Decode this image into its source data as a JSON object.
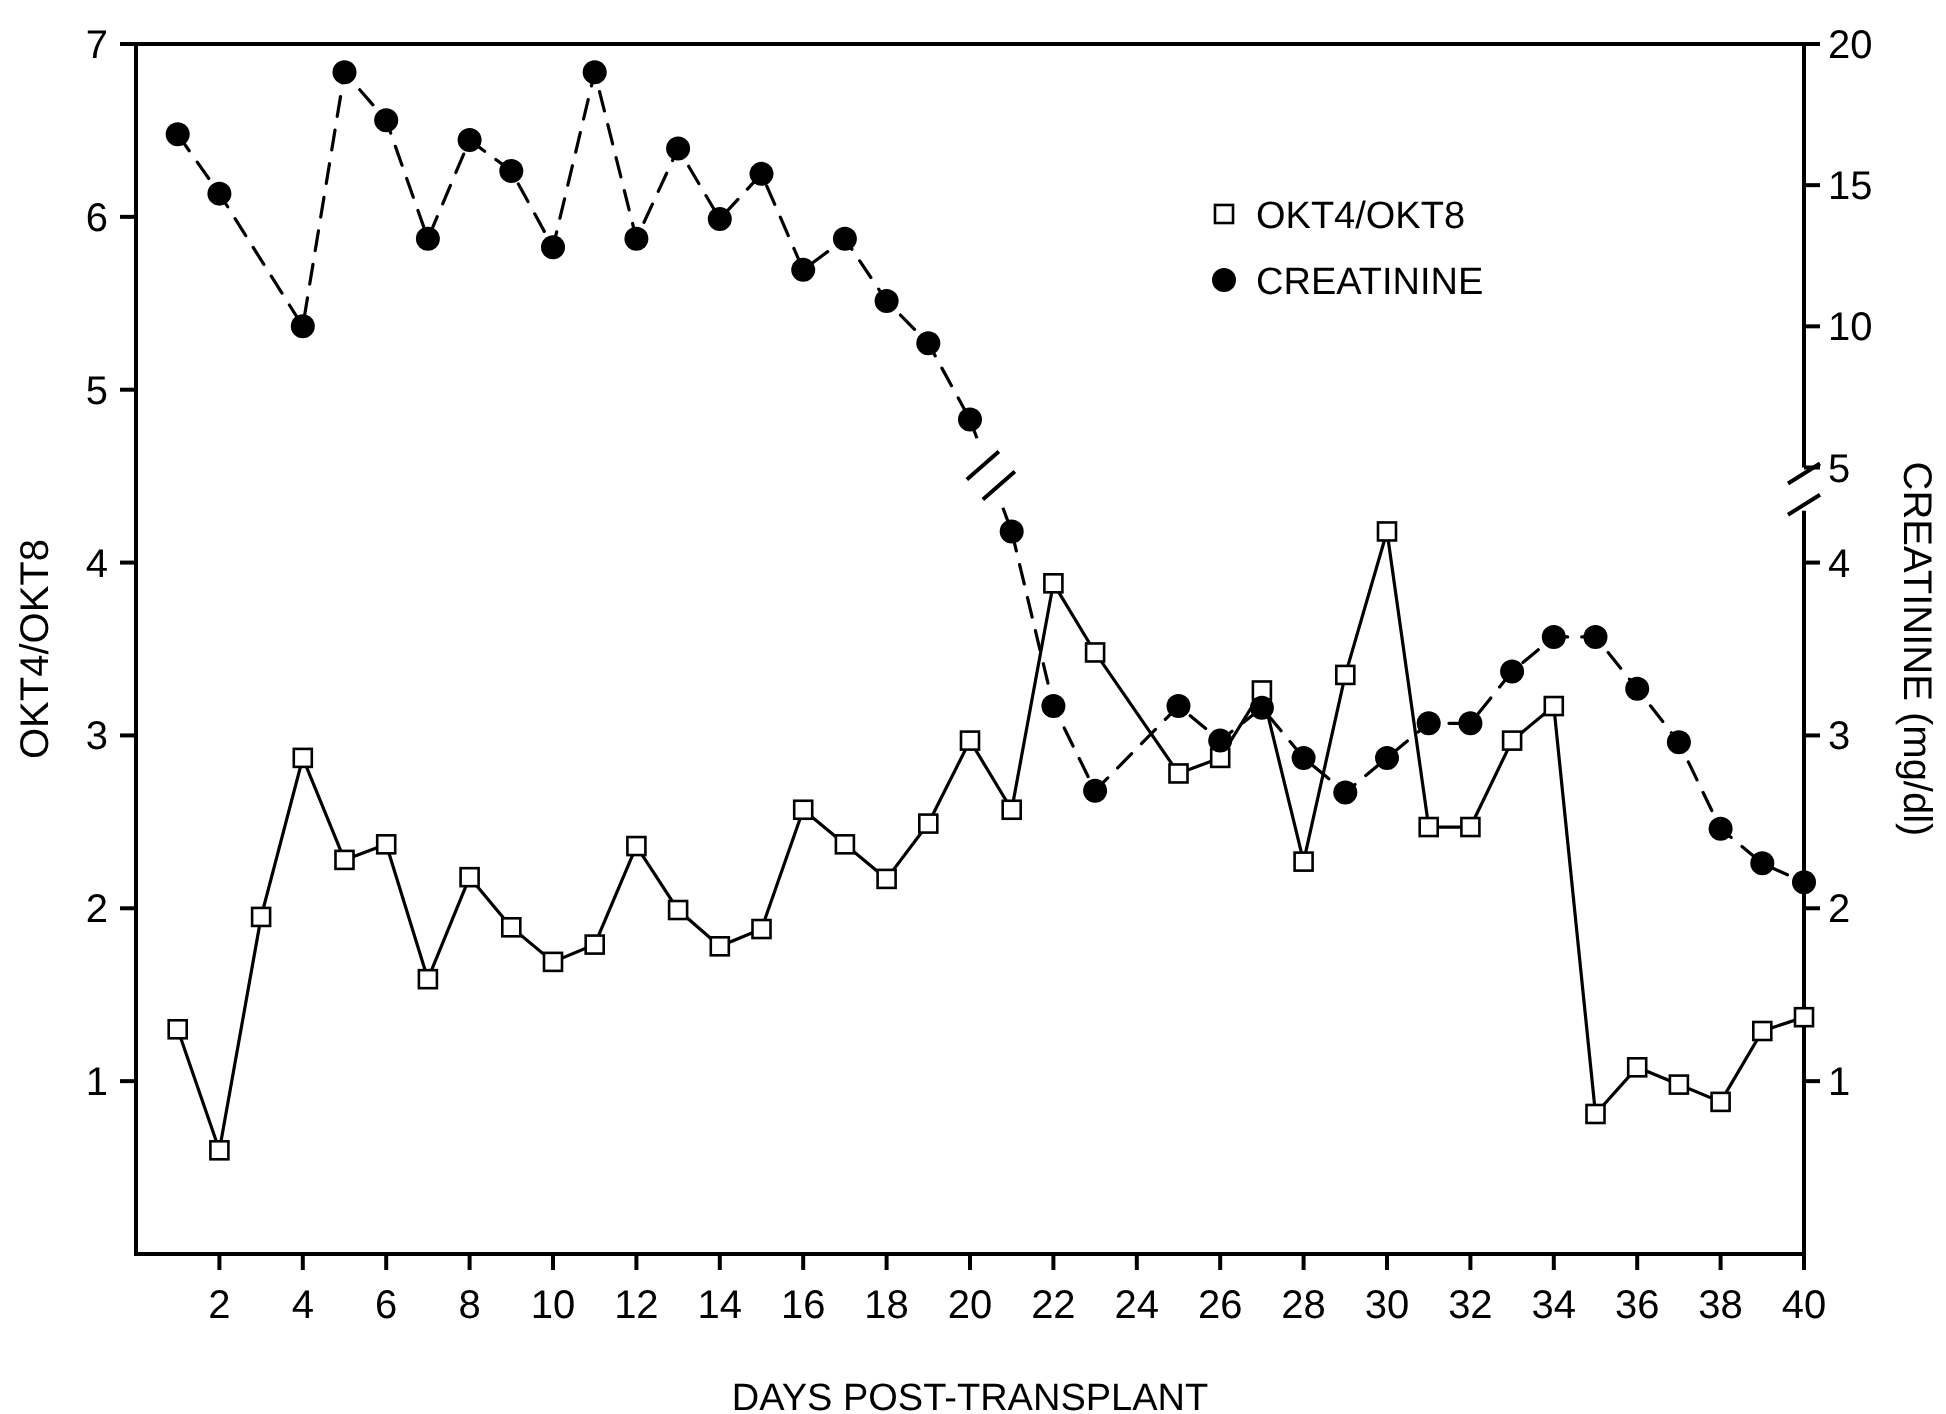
{
  "chart_data": {
    "type": "line",
    "xlabel": "DAYS POST-TRANSPLANT",
    "ylabel": "OKT4/OKT8",
    "y2label": "CREATININE (mg/dl)",
    "xlim": [
      0,
      40
    ],
    "xticks": [
      2,
      4,
      6,
      8,
      10,
      12,
      14,
      16,
      18,
      20,
      22,
      24,
      26,
      28,
      30,
      32,
      34,
      36,
      38,
      40
    ],
    "ylim": [
      0,
      7
    ],
    "yticks": [
      1,
      2,
      3,
      4,
      5,
      6,
      7
    ],
    "y2lim": [
      0,
      4.3
    ],
    "y2ticks": [
      1,
      2,
      3,
      4
    ],
    "y3lim": [
      5,
      20
    ],
    "y3ticks": [
      5,
      10,
      15,
      20
    ],
    "legend": "top right",
    "series": [
      {
        "name": "OKT4/OKT8",
        "color": "#000000",
        "marker": "square",
        "line_style": "solid",
        "x": [
          1,
          2,
          3,
          4,
          5,
          6,
          7,
          8,
          9,
          10,
          11,
          12,
          13,
          14,
          15,
          16,
          17,
          18,
          19,
          20,
          21,
          22,
          23,
          25,
          26,
          27,
          28,
          29,
          30,
          31,
          32,
          33,
          34,
          35,
          36,
          37,
          38,
          39,
          40
        ],
        "values": [
          1.3,
          0.6,
          1.95,
          2.87,
          2.28,
          2.37,
          1.59,
          2.18,
          1.89,
          1.69,
          1.79,
          2.36,
          1.99,
          1.78,
          1.88,
          2.57,
          2.37,
          2.17,
          2.49,
          2.97,
          2.57,
          3.88,
          3.48,
          2.78,
          2.87,
          3.26,
          2.27,
          3.35,
          4.18,
          2.47,
          2.47,
          2.97,
          3.17,
          0.81,
          1.08,
          0.98,
          0.88,
          1.29,
          1.37
        ]
      },
      {
        "name": "CREATININE",
        "color": "#000000",
        "marker": "circle",
        "line_style": "dashed",
        "axis": "y3",
        "x": [
          1,
          2,
          4,
          5,
          6,
          7,
          8,
          9,
          10,
          11,
          12,
          13,
          14,
          15,
          16,
          17,
          18,
          19,
          20
        ],
        "values": [
          16.8,
          14.7,
          10,
          19,
          17.3,
          13.1,
          16.6,
          15.5,
          12.8,
          19,
          13.1,
          16.3,
          13.8,
          15.4,
          12,
          13.1,
          10.9,
          9.4,
          6.7
        ]
      },
      {
        "color": "#000000",
        "marker": "circle",
        "line_style": "dashed",
        "axis": "y2",
        "x": [
          21,
          22,
          23,
          25,
          26,
          27,
          28,
          29,
          30,
          31,
          32,
          33,
          34,
          35,
          36,
          37,
          38,
          39,
          40
        ],
        "values": [
          4.18,
          3.17,
          2.68,
          3.17,
          2.97,
          3.16,
          2.87,
          2.67,
          2.87,
          3.07,
          3.07,
          3.37,
          3.57,
          3.57,
          3.27,
          2.96,
          2.46,
          2.26,
          2.15
        ]
      }
    ]
  }
}
